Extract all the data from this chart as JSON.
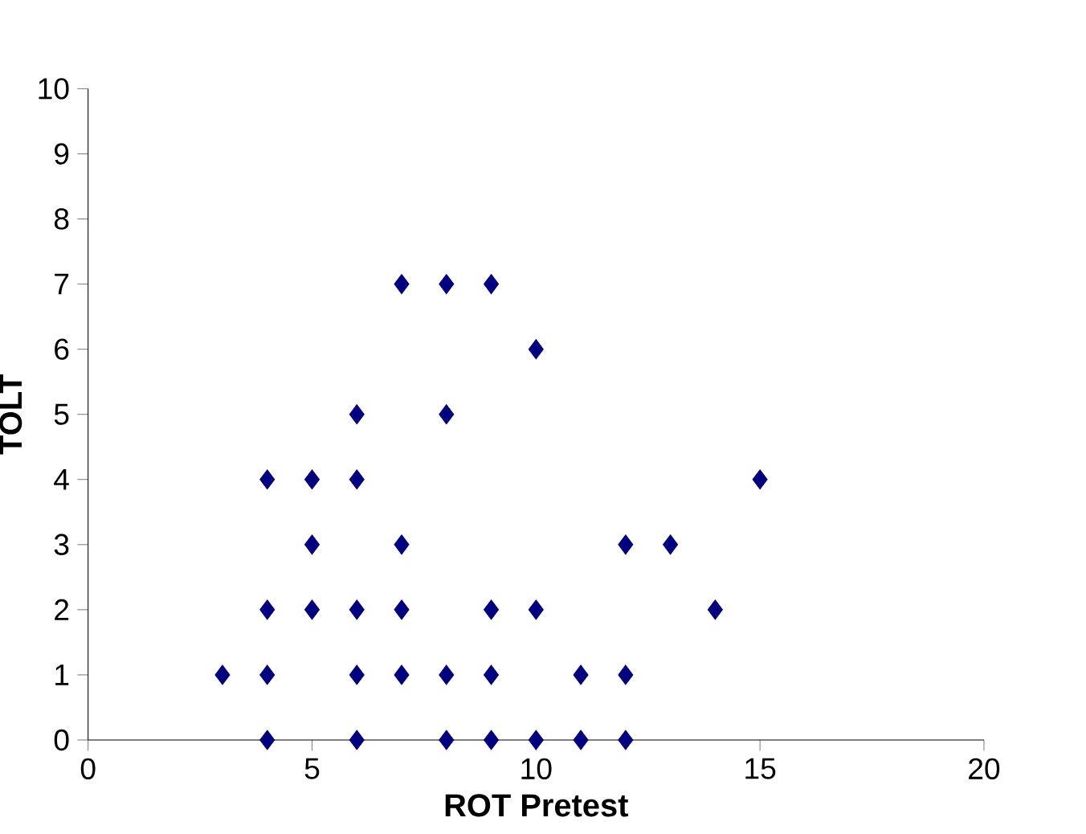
{
  "chart_data": {
    "type": "scatter",
    "xlabel": "ROT Pretest",
    "ylabel": "TOLT",
    "x": [
      3,
      4,
      4,
      4,
      4,
      5,
      5,
      5,
      6,
      6,
      6,
      6,
      6,
      7,
      7,
      7,
      7,
      8,
      8,
      8,
      8,
      9,
      9,
      9,
      9,
      10,
      10,
      10,
      11,
      11,
      12,
      12,
      12,
      13,
      14,
      15
    ],
    "values": [
      1,
      4,
      2,
      1,
      0,
      4,
      3,
      2,
      5,
      4,
      2,
      1,
      0,
      7,
      3,
      2,
      1,
      7,
      5,
      1,
      0,
      7,
      2,
      1,
      0,
      6,
      2,
      0,
      1,
      0,
      3,
      1,
      0,
      3,
      2,
      4
    ],
    "color": "#000080",
    "marker": "diamond",
    "xlim": [
      0,
      20
    ],
    "xticks": [
      0,
      5,
      10,
      15,
      20
    ],
    "ylim": [
      0,
      10
    ],
    "yticks": [
      0,
      1,
      2,
      3,
      4,
      5,
      6,
      7,
      8,
      9,
      10
    ]
  }
}
